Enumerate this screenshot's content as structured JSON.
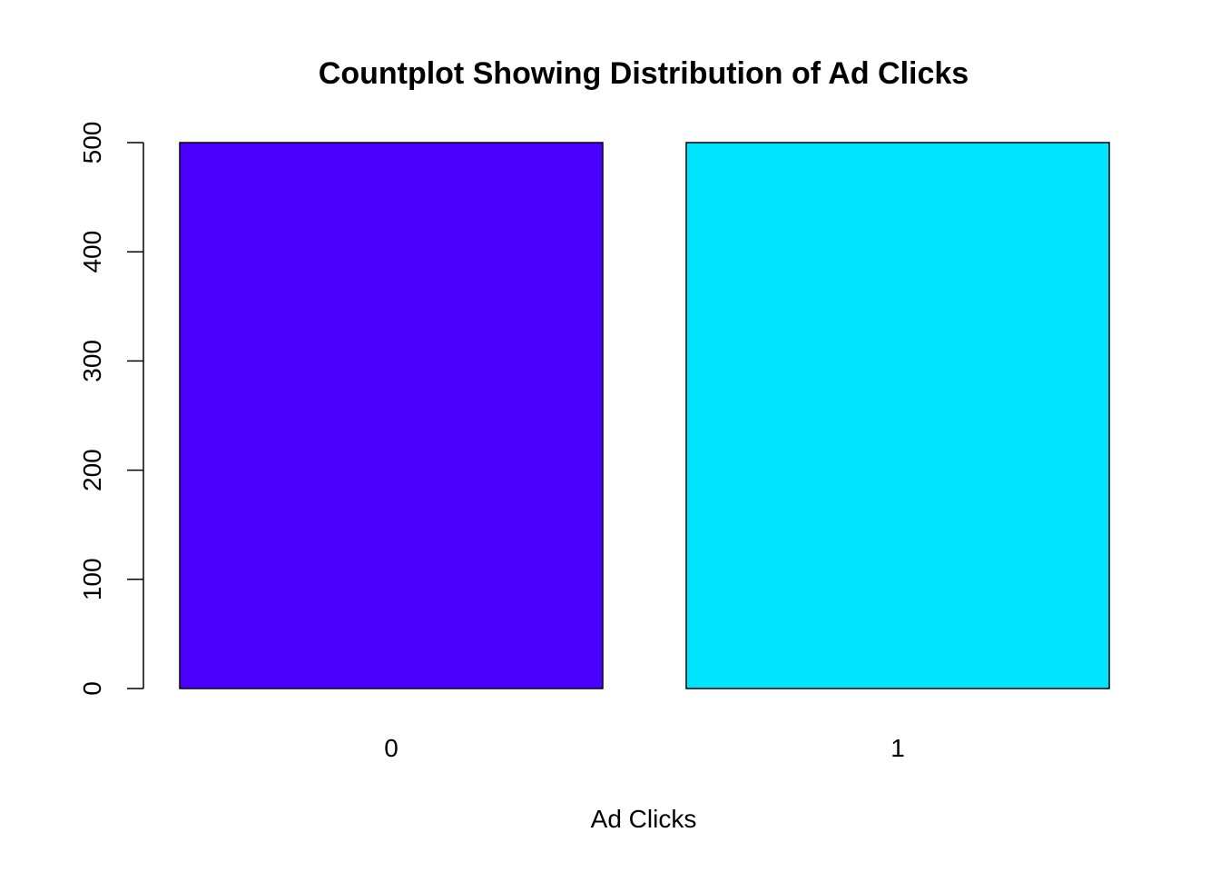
{
  "chart_data": {
    "type": "bar",
    "title": "Countplot Showing Distribution of Ad Clicks",
    "xlabel": "Ad Clicks",
    "ylabel": "",
    "categories": [
      "0",
      "1"
    ],
    "values": [
      500,
      500
    ],
    "colors": [
      "#4b00ff",
      "#00e5ff"
    ],
    "ylim": [
      0,
      500
    ],
    "yticks": [
      0,
      100,
      200,
      300,
      400,
      500
    ],
    "grid": false,
    "legend": "none"
  }
}
